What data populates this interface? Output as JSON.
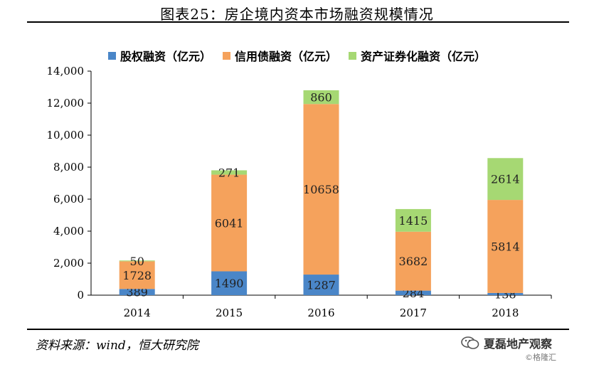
{
  "title": "图表25：房企境内资本市场融资规模情况",
  "source": "资料来源：wind，恒大研究院",
  "brand": {
    "name": "夏磊地产观察",
    "icon": "wechat-icon"
  },
  "watermark": "©格隆汇",
  "chart_data": {
    "type": "bar",
    "stacked": true,
    "categories": [
      "2014",
      "2015",
      "2016",
      "2017",
      "2018"
    ],
    "series": [
      {
        "name": "股权融资（亿元）",
        "color": "#4a86c8",
        "values": [
          389,
          1490,
          1287,
          284,
          138
        ]
      },
      {
        "name": "信用债融资（亿元）",
        "color": "#f5a25c",
        "values": [
          1728,
          6041,
          10658,
          3682,
          5814
        ]
      },
      {
        "name": "资产证券化融资（亿元）",
        "color": "#a6d873",
        "values": [
          50,
          271,
          860,
          1415,
          2614
        ]
      }
    ],
    "ylim": [
      0,
      14000
    ],
    "yticks": [
      "0",
      "2,000",
      "4,000",
      "6,000",
      "8,000",
      "10,000",
      "12,000",
      "14,000"
    ],
    "ytick_values": [
      0,
      2000,
      4000,
      6000,
      8000,
      10000,
      12000,
      14000
    ],
    "legend_position": "top",
    "grid": false
  }
}
